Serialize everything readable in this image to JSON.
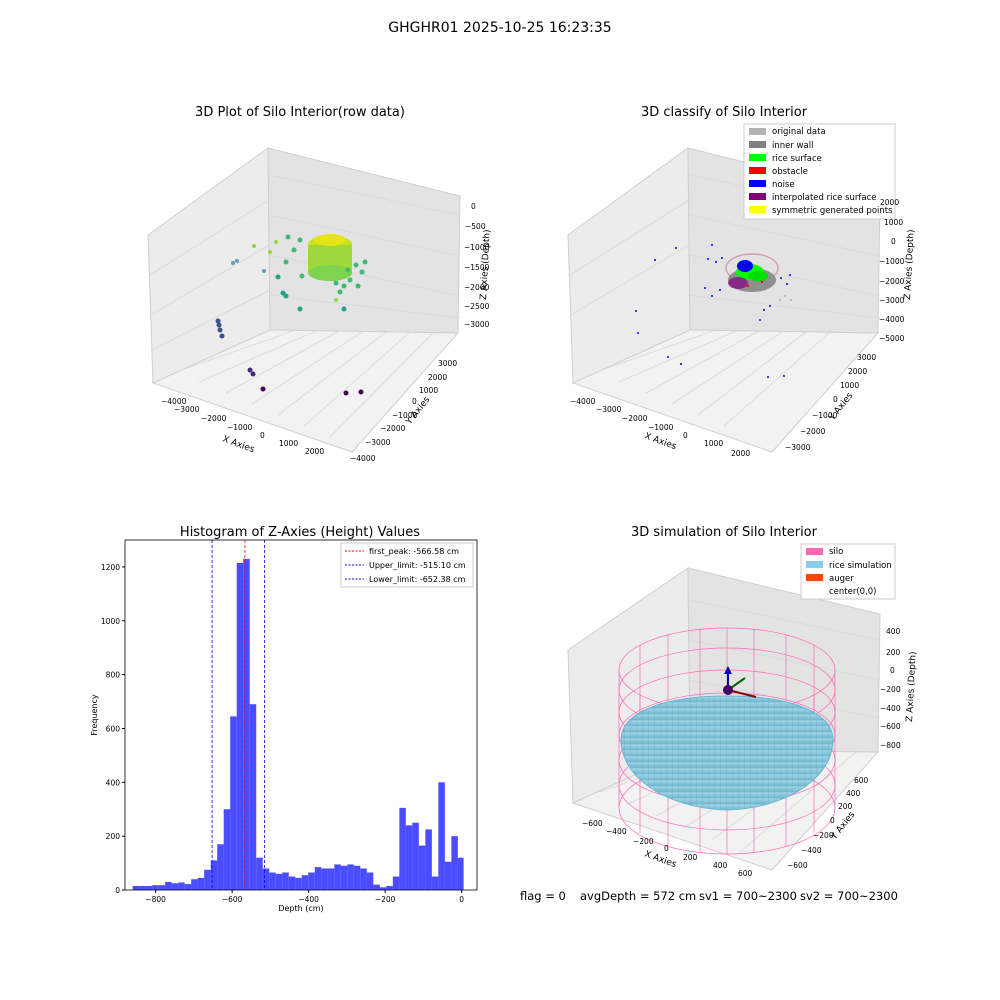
{
  "figure": {
    "suptitle": "GHGHR01 2025-10-25 16:23:35",
    "footer": {
      "flag": "flag = 0",
      "avg_depth": "avgDepth = 572 cm",
      "sv1": "sv1 = 700~2300",
      "sv2": "sv2 = 700~2300"
    }
  },
  "chart_data": [
    {
      "type": "scatter3d",
      "title": "3D Plot of Silo Interior(row data)",
      "xlabel": "X Axies",
      "ylabel": "Y Axies",
      "zlabel": "Z Axies (Depth)",
      "x_ticks": [
        "−4000",
        "−3000",
        "−2000",
        "−1000",
        "0",
        "1000",
        "2000"
      ],
      "y_ticks": [
        "−4000",
        "−3000",
        "−2000",
        "−1000",
        "0",
        "1000",
        "2000",
        "3000"
      ],
      "z_ticks": [
        "0",
        "−500",
        "−1000",
        "−1500",
        "−2000",
        "−2500",
        "−3000"
      ],
      "colormap": "viridis",
      "description_points": "dense yellow-green ring of rice surface points near center with scattered teal and dark purple outliers"
    },
    {
      "type": "scatter3d",
      "title": "3D classify of Silo Interior",
      "xlabel": "X Axies",
      "ylabel": "Y Axies",
      "zlabel": "Z Axies (Depth)",
      "x_ticks": [
        "−4000",
        "−3000",
        "−2000",
        "−1000",
        "0",
        "1000",
        "2000"
      ],
      "y_ticks": [
        "−3000",
        "−2000",
        "−1000",
        "0",
        "1000",
        "2000",
        "3000"
      ],
      "z_ticks": [
        "2000",
        "1000",
        "0",
        "−1000",
        "−2000",
        "−3000",
        "−4000",
        "−5000"
      ],
      "legend": [
        {
          "label": "original data",
          "color": "#b3b3b3"
        },
        {
          "label": "inner wall",
          "color": "#808080"
        },
        {
          "label": "rice surface",
          "color": "#00ff00"
        },
        {
          "label": "obstacle",
          "color": "#ff0000"
        },
        {
          "label": "noise",
          "color": "#0000ff"
        },
        {
          "label": "interpolated rice surface",
          "color": "#800080"
        },
        {
          "label": "symmetric generated points",
          "color": "#ffff00"
        }
      ],
      "legend_placement": "top-right"
    },
    {
      "type": "bar",
      "title": "Histogram of Z-Axies (Height) Values",
      "xlabel": "Depth (cm)",
      "ylabel": "Frequency",
      "xlim": [
        -880,
        40
      ],
      "ylim": [
        0,
        1300
      ],
      "x_ticks": [
        -800,
        -600,
        -400,
        -200,
        0
      ],
      "x_tick_labels": [
        "−800",
        "−600",
        "−400",
        "−200",
        "0"
      ],
      "y_ticks": [
        0,
        200,
        400,
        600,
        800,
        1000,
        1200
      ],
      "bin_edges": [
        -860,
        -843,
        -826,
        -809,
        -792,
        -775,
        -758,
        -741,
        -724,
        -707,
        -690,
        -673,
        -656,
        -639,
        -622,
        -605,
        -588,
        -571,
        -554,
        -537,
        -520,
        -503,
        -486,
        -469,
        -452,
        -435,
        -418,
        -401,
        -384,
        -367,
        -350,
        -333,
        -316,
        -299,
        -282,
        -265,
        -248,
        -231,
        -214,
        -197,
        -180,
        -163,
        -146,
        -129,
        -112,
        -95,
        -78,
        -61,
        -44,
        -27,
        -10,
        5
      ],
      "values": [
        15,
        15,
        15,
        18,
        18,
        30,
        25,
        28,
        22,
        40,
        45,
        75,
        110,
        170,
        300,
        645,
        1215,
        1230,
        690,
        120,
        80,
        65,
        60,
        65,
        50,
        45,
        55,
        65,
        85,
        80,
        80,
        95,
        90,
        95,
        90,
        80,
        65,
        20,
        10,
        15,
        50,
        305,
        240,
        250,
        165,
        225,
        50,
        400,
        105,
        200,
        120
      ],
      "bar_color": "#0000ff",
      "reference_lines": [
        {
          "label": "first_peak: -566.58 cm",
          "value": -566.58,
          "color": "#ff0000"
        },
        {
          "label": "Upper_limit: -515.10 cm",
          "value": -515.1,
          "color": "#0000ff"
        },
        {
          "label": "Lower_limit: -652.38 cm",
          "value": -652.38,
          "color": "#0000ff"
        }
      ],
      "legend_placement": "top-right",
      "grid": false
    },
    {
      "type": "surface3d",
      "title": "3D simulation of Silo Interior",
      "xlabel": "X Axies",
      "ylabel": "Y Axies",
      "zlabel": "Z Axies (Depth)",
      "x_ticks": [
        "−600",
        "−400",
        "−200",
        "0",
        "200",
        "400",
        "600"
      ],
      "y_ticks": [
        "−600",
        "−400",
        "−200",
        "0",
        "200",
        "400",
        "600"
      ],
      "z_ticks": [
        "400",
        "200",
        "0",
        "−200",
        "−400",
        "−600",
        "−800"
      ],
      "legend": [
        {
          "label": "silo",
          "color": "#ff69b4"
        },
        {
          "label": "rice simulation",
          "color": "#87ceeb"
        },
        {
          "label": "auger",
          "color": "#ff4500"
        },
        {
          "label": "center(0,0)",
          "color": ""
        }
      ],
      "legend_placement": "top-right"
    }
  ]
}
